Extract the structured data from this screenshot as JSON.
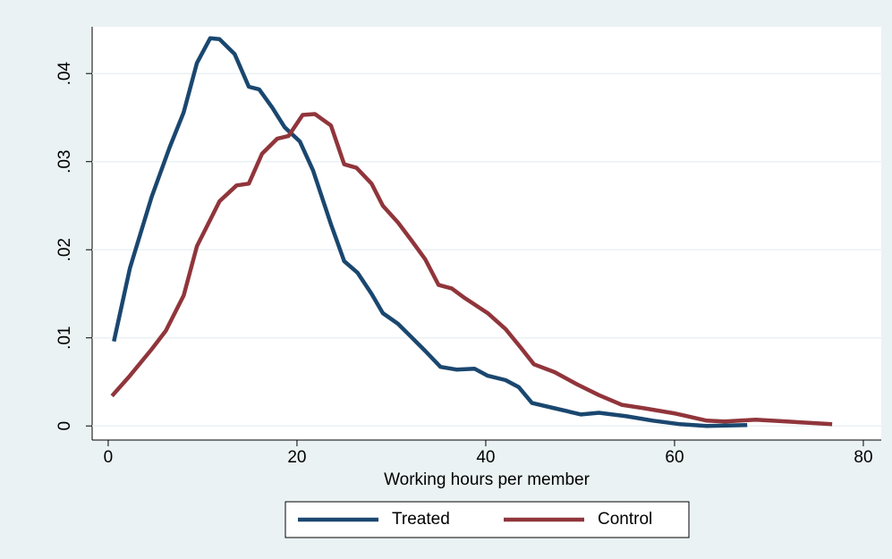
{
  "chart_data": {
    "type": "line",
    "xlabel": "Working hours per member",
    "xlim": [
      -1.7,
      81.9
    ],
    "xticks": [
      0,
      20,
      40,
      60,
      80
    ],
    "ylim": [
      -0.0016,
      0.0453
    ],
    "yticks": [
      0,
      {
        "value": 0.01,
        "label": ".01"
      },
      {
        "value": 0.02,
        "label": ".02"
      },
      {
        "value": 0.03,
        "label": ".03"
      },
      {
        "value": 0.04,
        "label": ".04"
      }
    ],
    "grid": true,
    "legend": "bottom",
    "series": [
      {
        "name": "Treated",
        "color": "#1a476f",
        "x": [
          0.6,
          2.3,
          4.6,
          6.5,
          8.0,
          9.4,
          10.8,
          11.8,
          13.4,
          14.9,
          16.0,
          17.4,
          18.7,
          20.3,
          21.7,
          23.6,
          25.0,
          26.4,
          27.9,
          29.1,
          30.7,
          32.1,
          33.6,
          35.2,
          36.9,
          38.8,
          40.2,
          42.1,
          43.5,
          44.9,
          47.3,
          50.1,
          52.0,
          54.9,
          57.7,
          60.6,
          63.4,
          67.7
        ],
        "values": [
          0.0096,
          0.0179,
          0.026,
          0.0316,
          0.0356,
          0.0412,
          0.044,
          0.0439,
          0.0422,
          0.0385,
          0.0382,
          0.0361,
          0.0339,
          0.0323,
          0.029,
          0.0229,
          0.0187,
          0.0174,
          0.015,
          0.0128,
          0.0116,
          0.0101,
          0.0085,
          0.0067,
          0.0064,
          0.0065,
          0.0057,
          0.0052,
          0.0044,
          0.0026,
          0.002,
          0.0013,
          0.0015,
          0.0011,
          0.0006,
          0.0002,
          0,
          0.0001
        ]
      },
      {
        "name": "Control",
        "color": "#90353b",
        "x": [
          0.4,
          2.3,
          4.6,
          6.1,
          8.0,
          9.4,
          11.8,
          13.6,
          14.9,
          16.3,
          17.9,
          19.1,
          20.6,
          21.9,
          23.6,
          25.0,
          26.3,
          27.9,
          29.1,
          30.7,
          32.1,
          33.6,
          35.0,
          36.4,
          37.8,
          40.2,
          42.1,
          43.7,
          45.1,
          47.3,
          49.7,
          52.0,
          54.4,
          56.8,
          60.1,
          63.4,
          65.3,
          68.6,
          71.9,
          76.7
        ],
        "values": [
          0.0034,
          0.0057,
          0.0087,
          0.0108,
          0.0148,
          0.0204,
          0.0255,
          0.0273,
          0.0275,
          0.0309,
          0.0326,
          0.0329,
          0.0353,
          0.0354,
          0.0341,
          0.0297,
          0.0293,
          0.0275,
          0.025,
          0.0231,
          0.0211,
          0.0189,
          0.016,
          0.0156,
          0.0145,
          0.0128,
          0.011,
          0.0089,
          0.007,
          0.0061,
          0.0047,
          0.0035,
          0.0024,
          0.002,
          0.0014,
          0.0006,
          0.0005,
          0.0007,
          0.0005,
          0.0002
        ]
      }
    ]
  }
}
